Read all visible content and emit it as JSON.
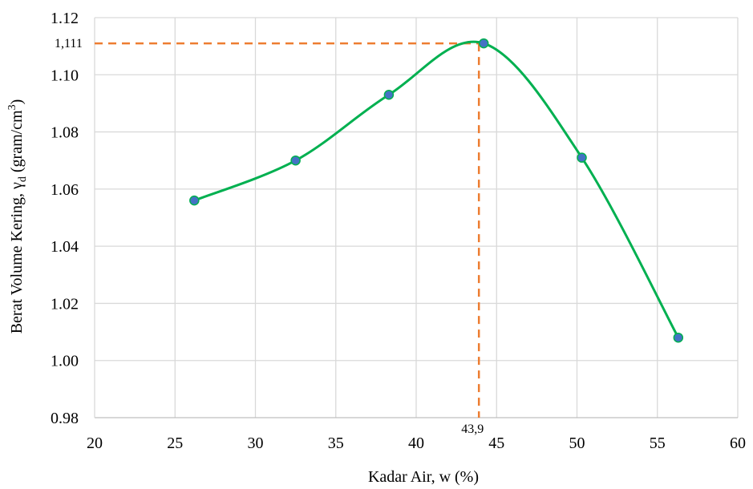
{
  "chart_data": {
    "type": "scatter",
    "xlabel": "Kadar Air, w (%)",
    "ylabel": {
      "prefix": "Berat Volume Kering, ",
      "symbol": "γ",
      "subscript": "d",
      "unit_prefix": " (gram/cm",
      "superscript": "3",
      "unit_suffix": ")"
    },
    "xlim": [
      20,
      60
    ],
    "ylim": [
      0.98,
      1.12
    ],
    "x_ticks": [
      "20",
      "25",
      "30",
      "35",
      "40",
      "45",
      "50",
      "55",
      "60"
    ],
    "y_ticks": [
      "0.98",
      "1.00",
      "1.02",
      "1.04",
      "1.06",
      "1.08",
      "1.10",
      "1.12"
    ],
    "grid": true,
    "series": [
      {
        "x": [
          26.2,
          32.5,
          38.3,
          44.2,
          50.3,
          56.3
        ],
        "y": [
          1.056,
          1.07,
          1.093,
          1.111,
          1.071,
          1.008
        ],
        "marker_color": "#4472c4",
        "line_color": "#00b050",
        "smooth": true
      }
    ],
    "annotations": {
      "optimum_x": 43.9,
      "optimum_y": 1.111,
      "x_label": "43,9",
      "y_label": "1,111",
      "line_color": "#ed7d31",
      "dashed": true
    }
  }
}
